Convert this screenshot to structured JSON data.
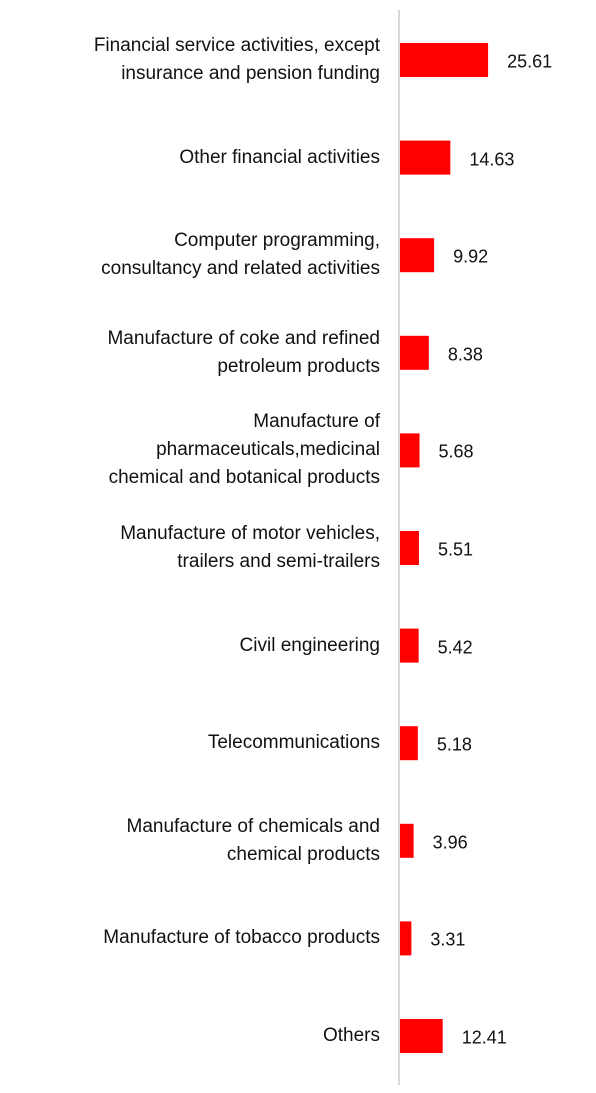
{
  "chart_data": {
    "type": "bar",
    "orientation": "horizontal",
    "categories": [
      "Financial service activities, except\ninsurance and pension funding",
      "Other financial activities",
      "Computer programming,\nconsultancy and related activities",
      "Manufacture of coke and refined\npetroleum products",
      "Manufacture of\npharmaceuticals,medicinal\nchemical and botanical products",
      "Manufacture of motor vehicles,\ntrailers and semi-trailers",
      "Civil engineering",
      "Telecommunications",
      "Manufacture of chemicals and\nchemical products",
      "Manufacture of tobacco products",
      "Others"
    ],
    "values": [
      25.61,
      14.63,
      9.92,
      8.38,
      5.68,
      5.51,
      5.42,
      5.18,
      3.96,
      3.31,
      12.41
    ],
    "color": "#ff0000"
  }
}
